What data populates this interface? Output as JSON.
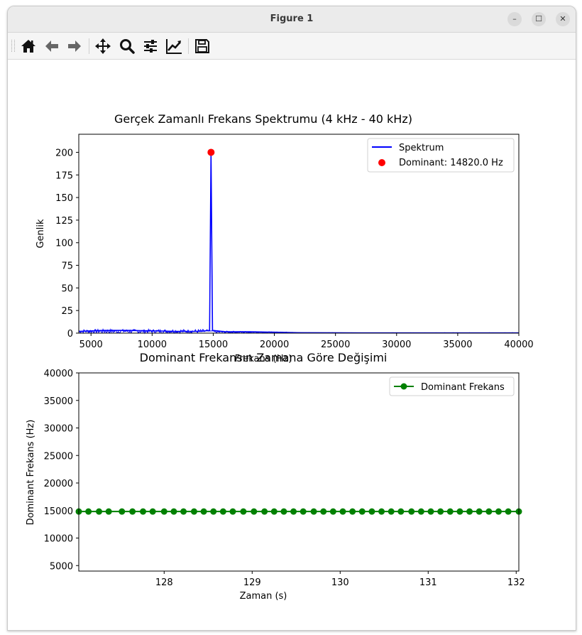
{
  "window": {
    "title": "Figure 1",
    "buttons": {
      "minimize": "–",
      "maximize": "☐",
      "close": "✕"
    }
  },
  "toolbar": {
    "items": [
      "home-icon",
      "back-icon",
      "forward-icon",
      "pan-icon",
      "zoom-icon",
      "configure-subplots-icon",
      "edit-axis-icon",
      "save-icon"
    ]
  },
  "colors": {
    "spectrum": "#0000ff",
    "dominant_marker": "#ff0000",
    "history": "#008000"
  },
  "chart_data": [
    {
      "type": "line",
      "title": "Gerçek Zamanlı Frekans Spektrumu (4 kHz - 40 kHz)",
      "xlabel": "Frekans (Hz)",
      "ylabel": "Genlik",
      "xlim": [
        4000,
        40000
      ],
      "ylim": [
        0,
        220
      ],
      "xticks": [
        5000,
        10000,
        15000,
        20000,
        25000,
        30000,
        35000,
        40000
      ],
      "yticks": [
        0,
        25,
        50,
        75,
        100,
        125,
        150,
        175,
        200
      ],
      "grid": false,
      "legend_position": "top-right",
      "series": [
        {
          "name": "Spektrum",
          "kind": "line",
          "color": "#0000ff",
          "x": [
            4000,
            6000,
            8000,
            10000,
            12000,
            14000,
            14700,
            14820,
            14940,
            16000,
            18000,
            20000,
            22000,
            25000,
            30000,
            35000,
            40000
          ],
          "y": [
            2,
            3,
            3,
            2.5,
            2,
            2,
            3,
            200,
            3,
            1.5,
            1.5,
            1,
            0.5,
            0.3,
            0.2,
            0.2,
            0.2
          ]
        },
        {
          "name": "Dominant: 14820.0 Hz",
          "kind": "scatter",
          "color": "#ff0000",
          "x": [
            14820
          ],
          "y": [
            200
          ]
        }
      ]
    },
    {
      "type": "line",
      "title": "Dominant Frekansın Zamana Göre Değişimi",
      "xlabel": "Zaman (s)",
      "ylabel": "Dominant Frekans (Hz)",
      "xlim": [
        127.03,
        132.03
      ],
      "ylim": [
        4000,
        40000
      ],
      "xticks": [
        128,
        129,
        130,
        131,
        132
      ],
      "yticks": [
        5000,
        10000,
        15000,
        20000,
        25000,
        30000,
        35000,
        40000
      ],
      "grid": false,
      "legend_position": "top-right",
      "series": [
        {
          "name": "Dominant Frekans",
          "color": "#008000",
          "marker": "o",
          "x": [
            127.03,
            127.14,
            127.26,
            127.37,
            127.52,
            127.64,
            127.76,
            127.87,
            128.0,
            128.11,
            128.22,
            128.34,
            128.45,
            128.56,
            128.67,
            128.78,
            128.9,
            129.02,
            129.14,
            129.25,
            129.36,
            129.47,
            129.58,
            129.7,
            129.81,
            129.92,
            130.03,
            130.14,
            130.25,
            130.36,
            130.47,
            130.58,
            130.69,
            130.81,
            130.92,
            131.03,
            131.14,
            131.25,
            131.36,
            131.47,
            131.58,
            131.69,
            131.8,
            131.91,
            132.03
          ],
          "y": [
            14820,
            14820,
            14820,
            14820,
            14820,
            14820,
            14820,
            14820,
            14820,
            14820,
            14820,
            14820,
            14820,
            14820,
            14820,
            14820,
            14820,
            14820,
            14820,
            14820,
            14820,
            14820,
            14820,
            14820,
            14820,
            14820,
            14820,
            14820,
            14820,
            14820,
            14820,
            14820,
            14820,
            14820,
            14820,
            14820,
            14820,
            14820,
            14820,
            14820,
            14820,
            14820,
            14820,
            14820,
            14820
          ]
        }
      ]
    }
  ]
}
